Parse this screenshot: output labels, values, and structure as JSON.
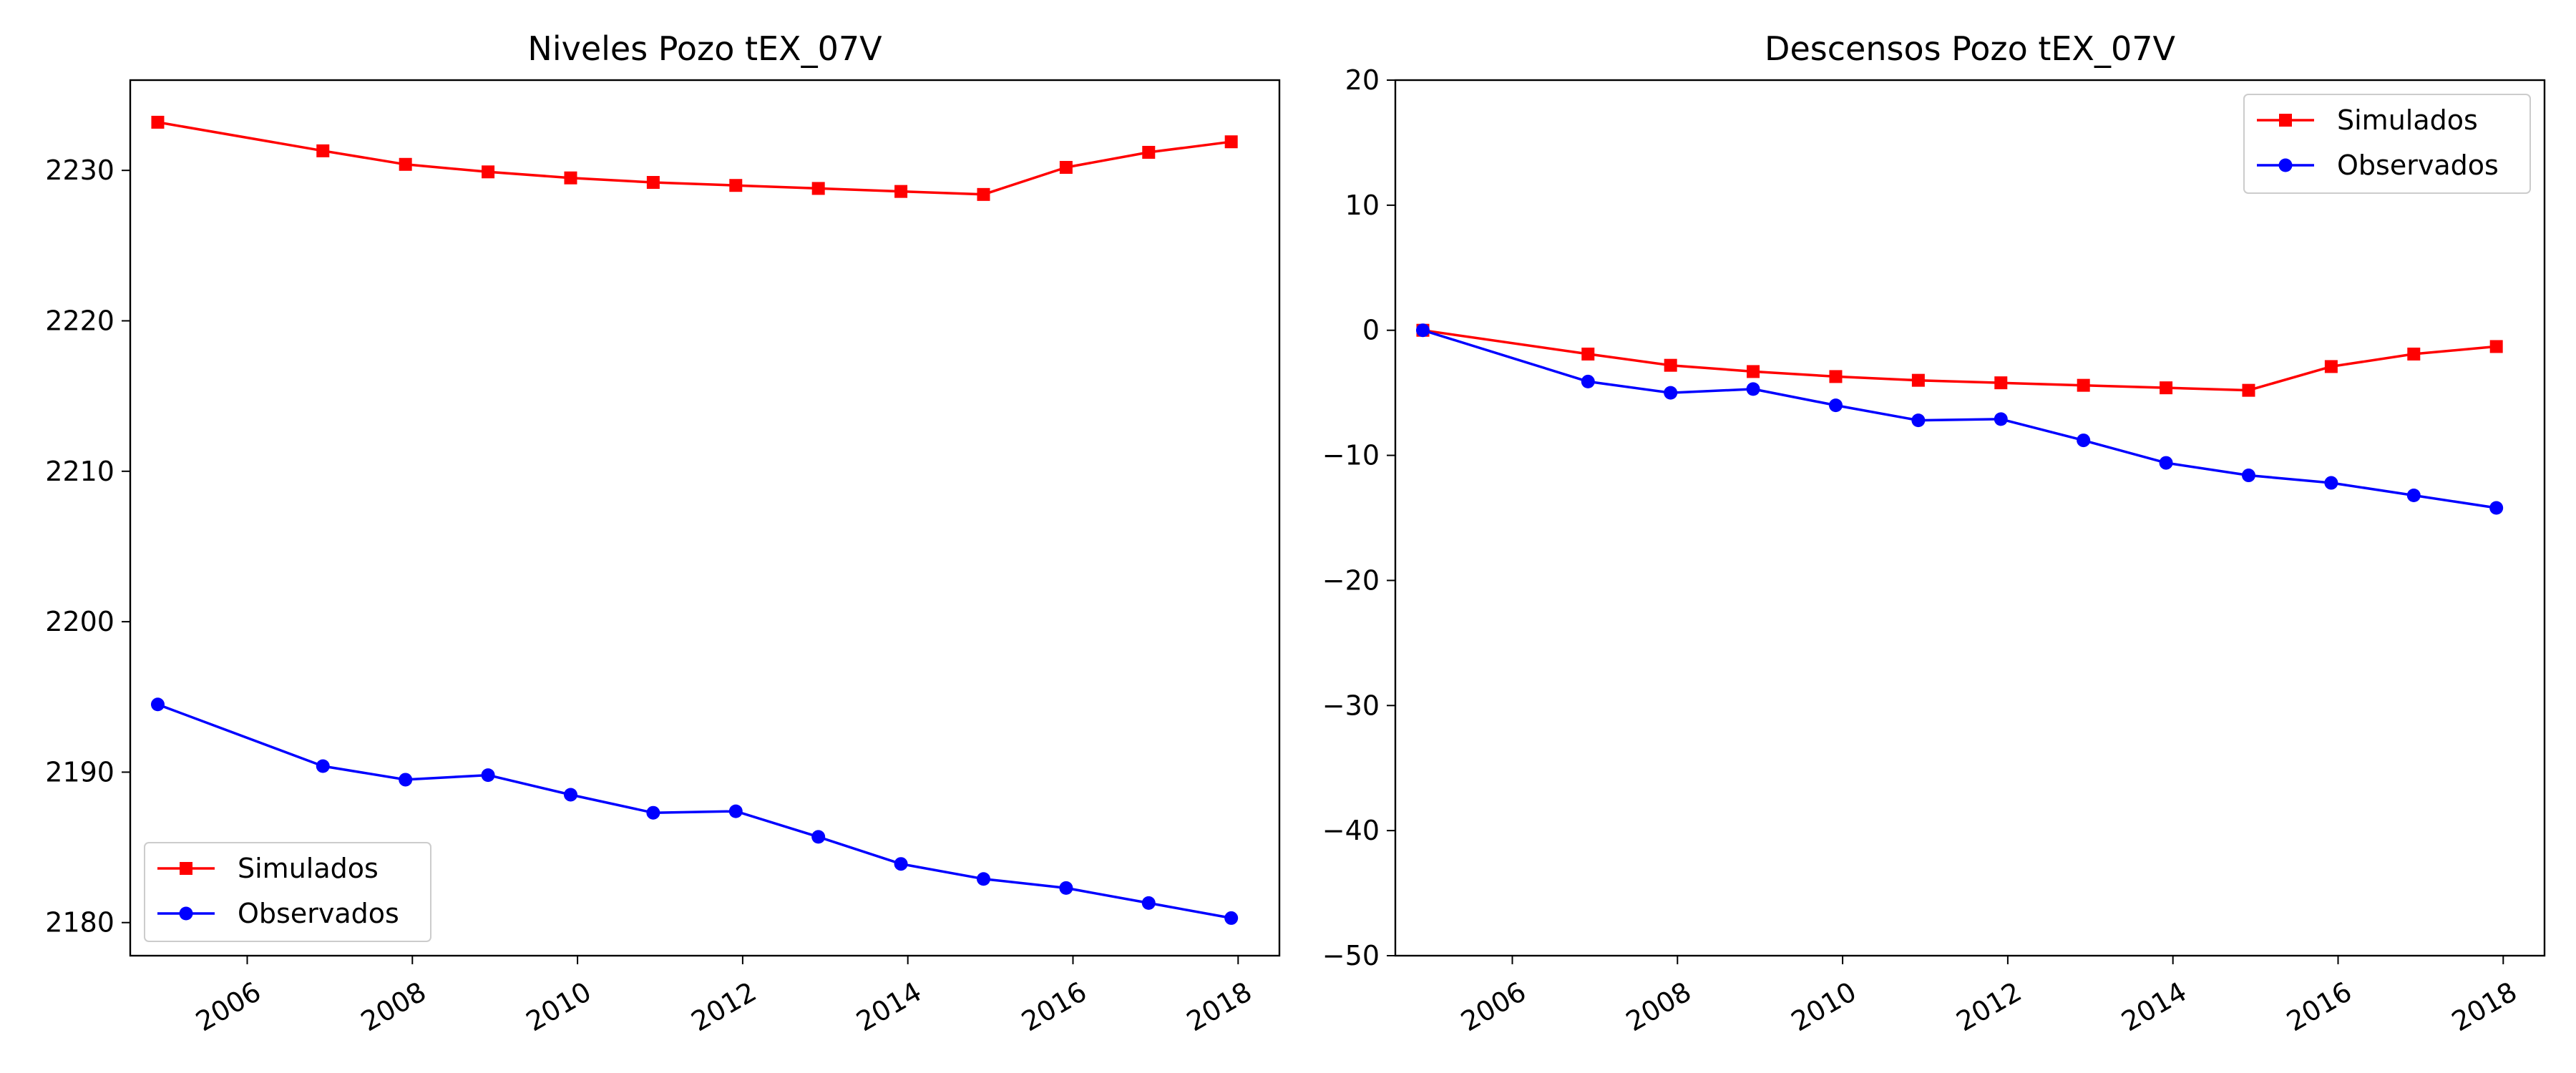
{
  "chart_data": [
    {
      "type": "line",
      "title": "Niveles Pozo tEX_07V",
      "xlabel": "",
      "ylabel": "",
      "x": [
        "2004-12",
        "2006-12",
        "2007-12",
        "2008-12",
        "2009-12",
        "2010-12",
        "2011-12",
        "2012-12",
        "2013-12",
        "2014-12",
        "2015-12",
        "2016-12",
        "2017-12"
      ],
      "xlim": [
        "2004-08",
        "2018-07"
      ],
      "xticks": [
        "2006",
        "2008",
        "2010",
        "2012",
        "2014",
        "2016",
        "2018"
      ],
      "ylim": [
        2177.8,
        2236.0
      ],
      "yticks": [
        2180,
        2190,
        2200,
        2210,
        2220,
        2230
      ],
      "grid": false,
      "legend_position": "lower-left",
      "series": [
        {
          "name": "Simulados",
          "color": "#ff0000",
          "marker": "square",
          "values": [
            2233.2,
            2231.3,
            2230.4,
            2229.9,
            2229.5,
            2229.2,
            2229.0,
            2228.8,
            2228.6,
            2228.4,
            2230.2,
            2231.2,
            2231.9
          ]
        },
        {
          "name": "Observados",
          "color": "#0000ff",
          "marker": "circle",
          "values": [
            2194.5,
            2190.4,
            2189.5,
            2189.8,
            2188.5,
            2187.3,
            2187.4,
            2185.7,
            2183.9,
            2182.9,
            2182.3,
            2181.3,
            2180.3
          ]
        }
      ]
    },
    {
      "type": "line",
      "title": "Descensos Pozo tEX_07V",
      "xlabel": "",
      "ylabel": "",
      "x": [
        "2004-12",
        "2006-12",
        "2007-12",
        "2008-12",
        "2009-12",
        "2010-12",
        "2011-12",
        "2012-12",
        "2013-12",
        "2014-12",
        "2015-12",
        "2016-12",
        "2017-12"
      ],
      "xlim": [
        "2004-08",
        "2018-07"
      ],
      "xticks": [
        "2006",
        "2008",
        "2010",
        "2012",
        "2014",
        "2016",
        "2018"
      ],
      "ylim": [
        -50,
        20
      ],
      "yticks": [
        -50,
        -40,
        -30,
        -20,
        -10,
        0,
        10,
        20
      ],
      "grid": false,
      "legend_position": "upper-right",
      "series": [
        {
          "name": "Simulados",
          "color": "#ff0000",
          "marker": "square",
          "values": [
            0.0,
            -1.9,
            -2.8,
            -3.3,
            -3.7,
            -4.0,
            -4.2,
            -4.4,
            -4.6,
            -4.8,
            -2.9,
            -1.9,
            -1.3
          ]
        },
        {
          "name": "Observados",
          "color": "#0000ff",
          "marker": "circle",
          "values": [
            0.0,
            -4.1,
            -5.0,
            -4.7,
            -6.0,
            -7.2,
            -7.1,
            -8.8,
            -10.6,
            -11.6,
            -12.2,
            -13.2,
            -14.2
          ]
        }
      ]
    }
  ]
}
